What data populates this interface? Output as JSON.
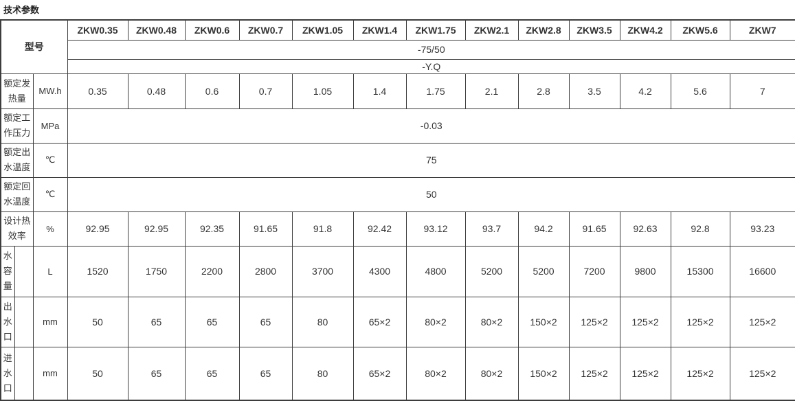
{
  "page": {
    "title": "技术参数"
  },
  "table": {
    "model_label": "型号",
    "models": [
      "ZKW0.35",
      "ZKW0.48",
      "ZKW0.6",
      "ZKW0.7",
      "ZKW1.05",
      "ZKW1.4",
      "ZKW1.75",
      "ZKW2.1",
      "ZKW2.8",
      "ZKW3.5",
      "ZKW4.2",
      "ZKW5.6",
      "ZKW7"
    ],
    "model_span_rows": [
      "-75/50",
      "-Y.Q"
    ],
    "rows": [
      {
        "label": "额定发热量",
        "unit": "MW.h",
        "values": [
          "0.35",
          "0.48",
          "0.6",
          "0.7",
          "1.05",
          "1.4",
          "1.75",
          "2.1",
          "2.8",
          "3.5",
          "4.2",
          "5.6",
          "7"
        ]
      },
      {
        "label": "额定工作压力",
        "unit": "MPa",
        "value": "-0.03"
      },
      {
        "label": "额定出水温度",
        "unit": "℃",
        "value": "75"
      },
      {
        "label": "额定回水温度",
        "unit": "℃",
        "value": "50"
      },
      {
        "label": "设计热效率",
        "unit": "%",
        "values": [
          "92.95",
          "92.95",
          "92.35",
          "91.65",
          "91.8",
          "92.42",
          "93.12",
          "93.7",
          "94.2",
          "91.65",
          "92.63",
          "92.8",
          "93.23"
        ]
      },
      {
        "label": "水容量",
        "unit": "L",
        "narrow": true,
        "values": [
          "1520",
          "1750",
          "2200",
          "2800",
          "3700",
          "4300",
          "4800",
          "5200",
          "5200",
          "7200",
          "9800",
          "15300",
          "16600"
        ]
      },
      {
        "label": "出水口",
        "unit": "mm",
        "narrow": true,
        "values": [
          "50",
          "65",
          "65",
          "65",
          "80",
          "65×2",
          "80×2",
          "80×2",
          "150×2",
          "125×2",
          "125×2",
          "125×2",
          "125×2"
        ]
      },
      {
        "label": "进水口",
        "unit": "mm",
        "narrow": true,
        "values": [
          "50",
          "65",
          "65",
          "65",
          "80",
          "65×2",
          "80×2",
          "80×2",
          "150×2",
          "125×2",
          "125×2",
          "125×2",
          "125×2"
        ]
      }
    ]
  }
}
